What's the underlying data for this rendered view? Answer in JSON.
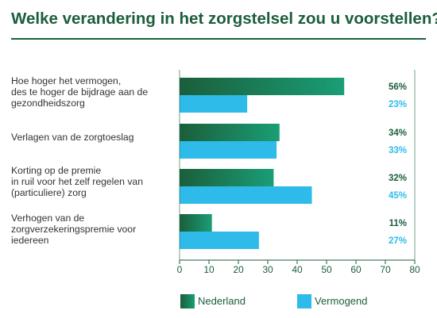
{
  "chart_data": {
    "type": "bar",
    "orientation": "horizontal",
    "title": "Welke verandering in het zorgstelsel zou u voorstellen?",
    "categories": [
      [
        "Hoe hoger het vermogen,",
        "des te hoger de bijdrage aan de",
        "gezondheidszorg"
      ],
      [
        "Verlagen van de zorgtoeslag"
      ],
      [
        "Korting op de premie",
        "in ruil voor het zelf regelen van",
        "(particuliere) zorg"
      ],
      [
        "Verhogen van de",
        "zorgverzekeringspremie voor",
        "iedereen"
      ]
    ],
    "series": [
      {
        "name": "Nederland",
        "values": [
          56,
          34,
          32,
          11
        ],
        "labels": [
          "56%",
          "34%",
          "32%",
          "11%"
        ],
        "color": "#1b7a55"
      },
      {
        "name": "Vermogend",
        "values": [
          23,
          33,
          45,
          27
        ],
        "labels": [
          "23%",
          "33%",
          "45%",
          "27%"
        ],
        "color": "#2ebbea"
      }
    ],
    "xlim": [
      0,
      80
    ],
    "xticks": [
      "0",
      "10",
      "20",
      "30",
      "40",
      "50",
      "60",
      "70",
      "80"
    ],
    "grid": false,
    "legend_position": "bottom"
  },
  "colors": {
    "title": "#1b5e3b",
    "nederland_dark": "#1b5e3b",
    "nederland_light": "#1a9e76",
    "vermogend": "#2ebbea",
    "axis": "#1b5e3b"
  }
}
